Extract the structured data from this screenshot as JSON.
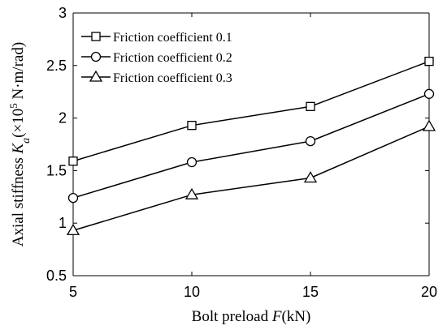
{
  "chart_data": {
    "type": "line",
    "x": [
      5,
      10,
      15,
      20
    ],
    "xlim": [
      5,
      20
    ],
    "ylim": [
      0.5,
      3
    ],
    "xticks": [
      "5",
      "10",
      "15",
      "20"
    ],
    "yticks": [
      "0.5",
      "1",
      "1.5",
      "2",
      "2.5",
      "3"
    ],
    "xlabel": {
      "prefix": "Bolt preload ",
      "var": "F",
      "suffix": "(kN)"
    },
    "ylabel": {
      "prefix": "Axial stiffness ",
      "var": "K",
      "sub": "a",
      "unit_pre": "(×10",
      "exp": "5",
      "unit_post": " N·m/rad)"
    },
    "legend_position": "top-left",
    "grid": false,
    "series": [
      {
        "name": "Friction coefficient 0.1",
        "marker": "square",
        "values": [
          1.59,
          1.93,
          2.11,
          2.54
        ]
      },
      {
        "name": "Friction coefficient 0.2",
        "marker": "circle",
        "values": [
          1.24,
          1.58,
          1.78,
          2.23
        ]
      },
      {
        "name": "Friction coefficient 0.3",
        "marker": "triangle",
        "values": [
          0.93,
          1.27,
          1.43,
          1.92
        ]
      }
    ]
  }
}
